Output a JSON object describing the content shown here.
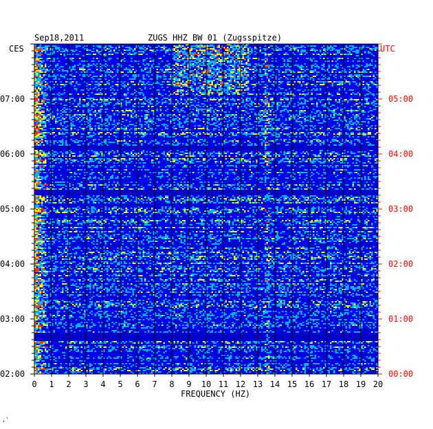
{
  "header": {
    "date": "Sep18,2011",
    "station": "ZUGS HHZ BW 01 (Zugsspitze)"
  },
  "chart_data": {
    "type": "heatmap",
    "title": "ZUGS HHZ BW 01 (Zugsspitze)",
    "date": "Sep18,2011",
    "xlabel": "FREQUENCY (HZ)",
    "xlim": [
      0,
      20
    ],
    "x_ticks": [
      "0",
      "1",
      "2",
      "3",
      "4",
      "5",
      "6",
      "7",
      "8",
      "9",
      "10",
      "11",
      "12",
      "13",
      "14",
      "15",
      "16",
      "17",
      "18",
      "19",
      "20"
    ],
    "left_axis": {
      "label": "CES",
      "ticks": [
        "07:00",
        "06:00",
        "05:00",
        "04:00",
        "03:00",
        "02:00"
      ]
    },
    "right_axis": {
      "label": "UTC",
      "ticks": [
        "05:00",
        "04:00",
        "03:00",
        "02:00",
        "01:00",
        "00:00"
      ]
    },
    "colors": {
      "background": "#0000c8",
      "low": "#0000ff",
      "mid": "#00b4ff",
      "high": "#ffff00",
      "peak": "#ff3000",
      "axis_left": "#000000",
      "axis_right": "#ff0000"
    }
  },
  "footer": {
    "mark": "‚'"
  }
}
